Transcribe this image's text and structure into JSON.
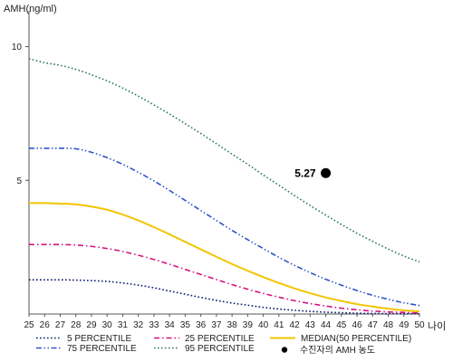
{
  "chart_data": {
    "type": "line",
    "title": "",
    "ylabel": "AMH(ng/ml)",
    "xlabel": "나이",
    "x": [
      25,
      26,
      27,
      28,
      29,
      30,
      31,
      32,
      33,
      34,
      35,
      36,
      37,
      38,
      39,
      40,
      41,
      42,
      43,
      44,
      45,
      46,
      47,
      48,
      49,
      50
    ],
    "xlim": [
      25,
      50
    ],
    "ylim": [
      0,
      11
    ],
    "yticks": [
      5,
      10
    ],
    "grid": false,
    "legend_position": "bottom",
    "series": [
      {
        "name": "5 PERCENTILE",
        "color": "#0a1a6e",
        "dash": "dotted",
        "values": [
          1.28,
          1.28,
          1.28,
          1.27,
          1.25,
          1.22,
          1.16,
          1.08,
          0.98,
          0.86,
          0.74,
          0.62,
          0.51,
          0.41,
          0.33,
          0.25,
          0.19,
          0.14,
          0.1,
          0.07,
          0.05,
          0.03,
          0.02,
          0.015,
          0.01,
          0.01
        ]
      },
      {
        "name": "25 PERCENTILE",
        "color": "#d4137f",
        "dash": "dashdot",
        "values": [
          2.6,
          2.6,
          2.6,
          2.58,
          2.53,
          2.45,
          2.34,
          2.2,
          2.04,
          1.86,
          1.67,
          1.48,
          1.29,
          1.1,
          0.93,
          0.77,
          0.63,
          0.5,
          0.39,
          0.3,
          0.22,
          0.16,
          0.11,
          0.08,
          0.06,
          0.04
        ]
      },
      {
        "name": "MEDIAN(50 PERCENTILE)",
        "color": "#f2c500",
        "dash": "solid",
        "values": [
          4.15,
          4.15,
          4.13,
          4.1,
          4.02,
          3.9,
          3.72,
          3.5,
          3.25,
          2.98,
          2.7,
          2.42,
          2.14,
          1.87,
          1.62,
          1.38,
          1.16,
          0.96,
          0.78,
          0.62,
          0.49,
          0.37,
          0.28,
          0.2,
          0.14,
          0.1
        ]
      },
      {
        "name": "75 PERCENTILE",
        "color": "#2f54c8",
        "dash": "dashdotdot",
        "values": [
          6.2,
          6.2,
          6.2,
          6.18,
          6.05,
          5.85,
          5.6,
          5.3,
          4.98,
          4.62,
          4.25,
          3.87,
          3.5,
          3.13,
          2.78,
          2.45,
          2.12,
          1.82,
          1.55,
          1.3,
          1.08,
          0.88,
          0.7,
          0.55,
          0.42,
          0.32
        ]
      },
      {
        "name": "95 PERCENTILE",
        "color": "#2e7d4f",
        "dash": "dotted",
        "values": [
          9.55,
          9.4,
          9.3,
          9.15,
          8.95,
          8.72,
          8.45,
          8.15,
          7.82,
          7.48,
          7.12,
          6.75,
          6.37,
          5.98,
          5.6,
          5.2,
          4.82,
          4.43,
          4.06,
          3.7,
          3.35,
          3.02,
          2.72,
          2.43,
          2.17,
          1.95
        ]
      }
    ],
    "point": {
      "name": "수진자의 AMH 농도",
      "x": 44,
      "y": 5.27,
      "label": "5.27",
      "color": "#000000"
    }
  }
}
